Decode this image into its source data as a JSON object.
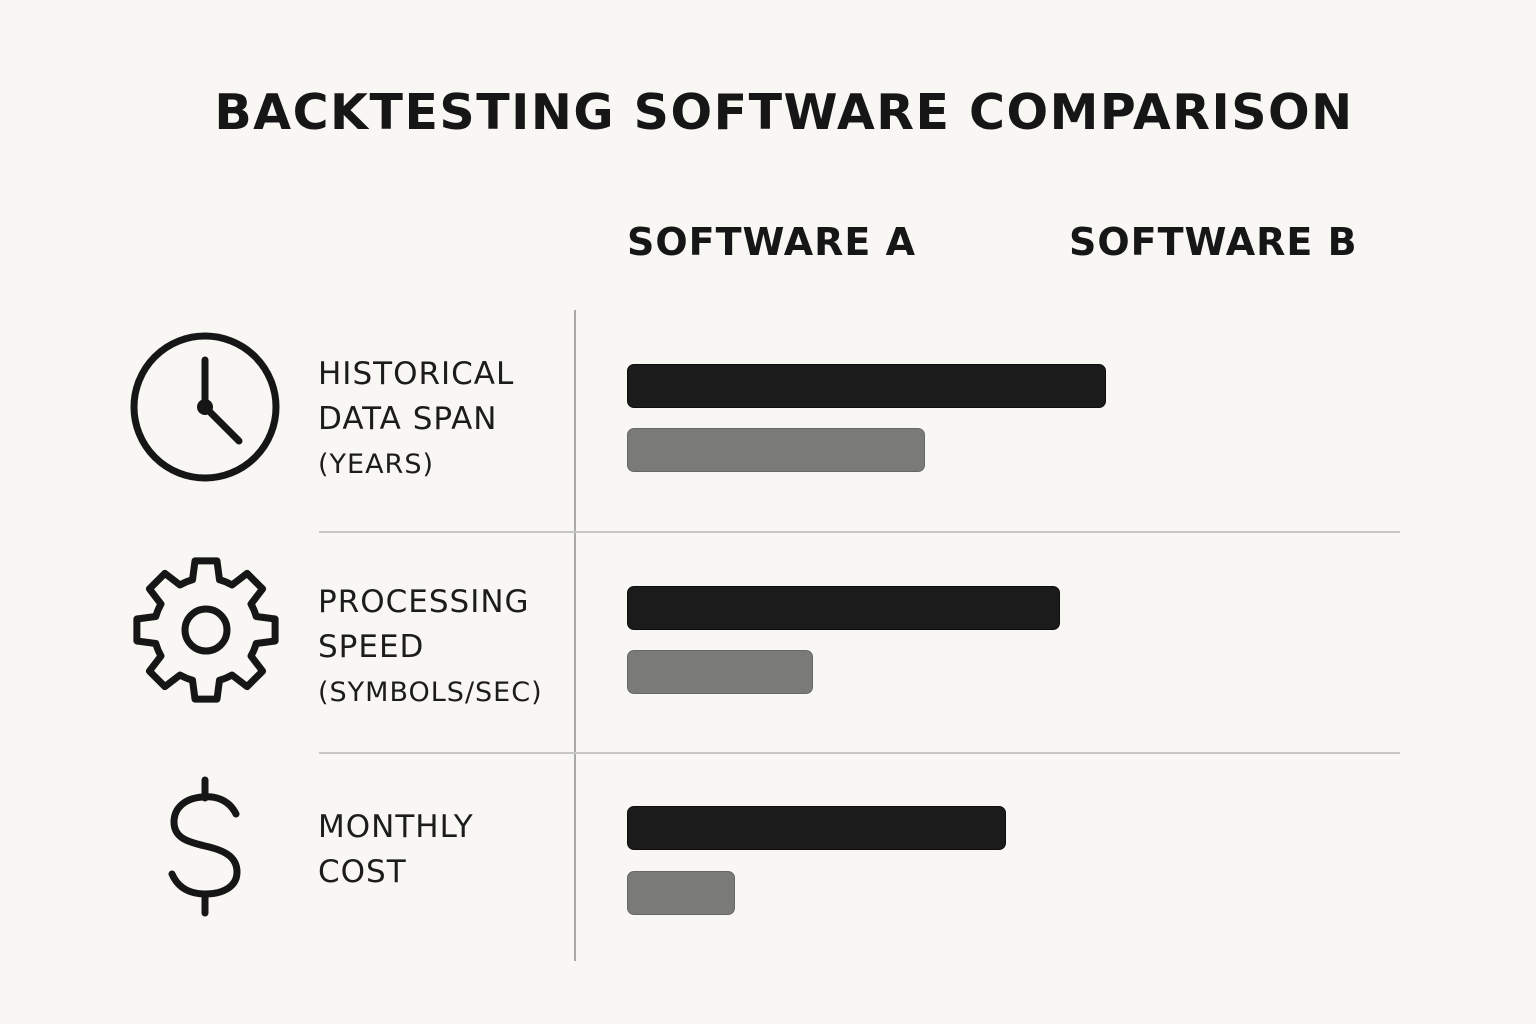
{
  "chart_data": {
    "type": "bar",
    "orientation": "horizontal",
    "title": "BACKTESTING SOFTWARE COMPARISON",
    "legend": [
      "SOFTWARE A",
      "SOFTWARE B"
    ],
    "categories": [
      {
        "label": [
          "HISTORICAL",
          "DATA SPAN"
        ],
        "unit": "(YEARS)",
        "icon": "clock-icon"
      },
      {
        "label": [
          "PROCESSING",
          "SPEED"
        ],
        "unit": "(SYMBOLS/SEC)",
        "icon": "gear-icon"
      },
      {
        "label": [
          "MONTHLY",
          "COST"
        ],
        "unit": "",
        "icon": "dollar-icon"
      }
    ],
    "series": [
      {
        "name": "SOFTWARE A",
        "color": "#1b1b1b",
        "values": [
          0.62,
          0.56,
          0.49
        ]
      },
      {
        "name": "SOFTWARE B",
        "color": "#7a7a78",
        "values": [
          0.385,
          0.24,
          0.14
        ]
      }
    ],
    "value_scale": "relative (no numeric axis shown)",
    "xlim": [
      0,
      1
    ]
  }
}
